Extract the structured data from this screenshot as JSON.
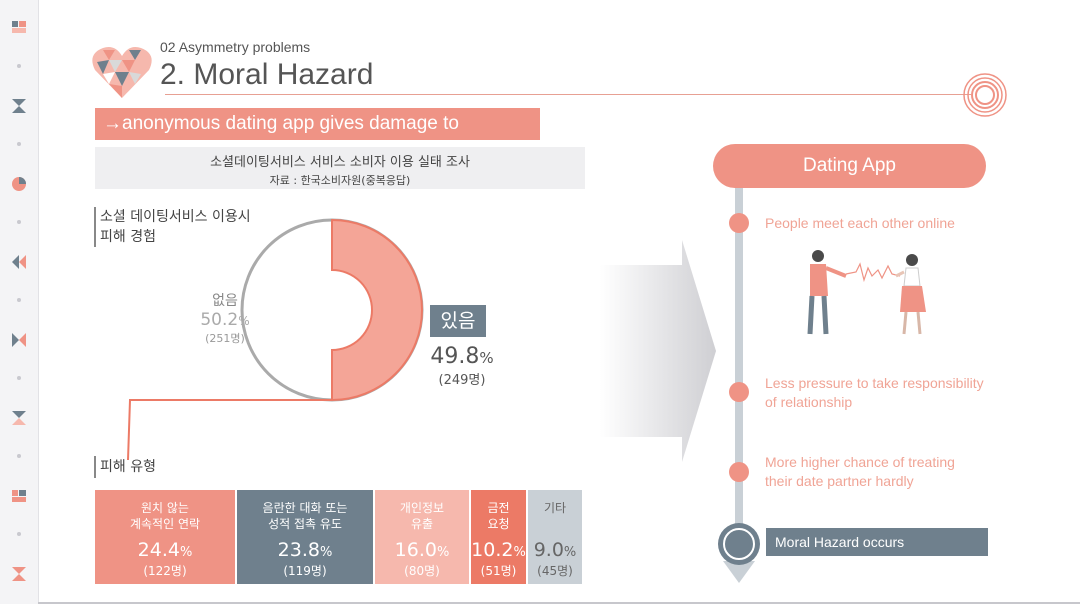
{
  "header": {
    "subtitle": "02 Asymmetry problems",
    "title": "2. Moral Hazard"
  },
  "banner": {
    "text": "→anonymous dating app gives damage to"
  },
  "survey": {
    "title": "소셜데이팅서비스 서비스 소비자 이용 실태 조사",
    "source": "자료 : 한국소비자원(중복응답)"
  },
  "damage_experience": {
    "label_line1": "소셜 데이팅서비스 이용시",
    "label_line2": "피해 경험",
    "no": {
      "label": "없음",
      "percent": "50.2",
      "count": "(251명)"
    },
    "yes": {
      "label": "있음",
      "percent": "49.8",
      "count": "(249명)"
    }
  },
  "damage_types": {
    "label": "피해 유형",
    "categories": [
      {
        "line1": "원치 않는",
        "line2": "계속적인 연락",
        "percent": "24.4",
        "count": "(122명)",
        "color": "#ef9385"
      },
      {
        "line1": "음란한 대화 또는",
        "line2": "성적 접촉 유도",
        "percent": "23.8",
        "count": "(119명)",
        "color": "#6f808d"
      },
      {
        "line1": "개인정보",
        "line2": "유출",
        "percent": "16.0",
        "count": "(80명)",
        "color": "#f6b8ad"
      },
      {
        "line1": "금전",
        "line2": "요청",
        "percent": "10.2",
        "count": "(51명)",
        "color": "#ec7a66"
      },
      {
        "line1": "기타",
        "line2": "",
        "percent": "9.0",
        "count": "(45명)",
        "color": "#c9d0d6"
      }
    ],
    "percent_sign": "%"
  },
  "timeline": {
    "header": "Dating App",
    "items": [
      {
        "line1": "People meet each other online",
        "line2": ""
      },
      {
        "line1": "Less pressure to take responsibility",
        "line2": "of relationship"
      },
      {
        "line1": "More higher chance of treating",
        "line2": "their date partner hardly"
      }
    ],
    "conclusion": "Moral Hazard occurs"
  },
  "colors": {
    "accent": "#ef9385",
    "slate": "#6f808d",
    "light_gray": "#c9d0d6"
  },
  "icons": [
    "heart-mosaic-icon",
    "target-rings-icon",
    "couple-illustration",
    "arrow-right-shape"
  ]
}
